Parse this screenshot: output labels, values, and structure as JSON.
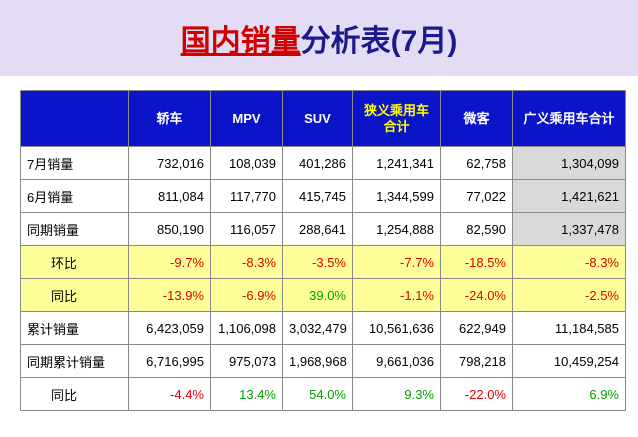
{
  "header": {
    "title_part1": "国内销量",
    "title_part2": "分析表(7月)"
  },
  "table": {
    "columns": [
      "",
      "轿车",
      "MPV",
      "SUV",
      "狭义乘用车合计",
      "微客",
      "广义乘用车合计"
    ],
    "rows": [
      [
        "7月销量",
        "732,016",
        "108,039",
        "401,286",
        "1,241,341",
        "62,758",
        "1,304,099"
      ],
      [
        "6月销量",
        "811,084",
        "117,770",
        "415,745",
        "1,344,599",
        "77,022",
        "1,421,621"
      ],
      [
        "同期销量",
        "850,190",
        "116,057",
        "288,641",
        "1,254,888",
        "82,590",
        "1,337,478"
      ],
      [
        "环比",
        "-9.7%",
        "-8.3%",
        "-3.5%",
        "-7.7%",
        "-18.5%",
        "-8.3%"
      ],
      [
        "同比",
        "-13.9%",
        "-6.9%",
        "39.0%",
        "-1.1%",
        "-24.0%",
        "-2.5%"
      ],
      [
        "累计销量",
        "6,423,059",
        "1,106,098",
        "3,032,479",
        "10,561,636",
        "622,949",
        "11,184,585"
      ],
      [
        "同期累计销量",
        "6,716,995",
        "975,073",
        "1,968,968",
        "9,661,036",
        "798,218",
        "10,459,254"
      ],
      [
        "同比",
        "-4.4%",
        "13.4%",
        "54.0%",
        "9.3%",
        "-22.0%",
        "6.9%"
      ]
    ]
  }
}
